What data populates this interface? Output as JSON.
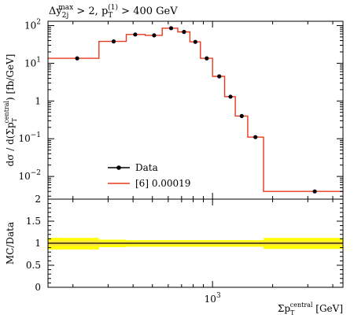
{
  "chart_data": [
    {
      "type": "line",
      "title": "Δy<sub>2j</sub><sup>max</sup> > 2, p<sub>T</sub><sup>(1)</sup> > 400 GeV",
      "title_parts": {
        "dy": "Δy",
        "dy_sub": "2j",
        "dy_sup": "max",
        "cut1": " > 2, p",
        "pt_sub": "T",
        "pt_sup": "(1)",
        "cut2": " > 400 GeV"
      },
      "xlabel": "Σp_T^central [GeV]",
      "xlabel_parts": {
        "sigma_p": "Σp",
        "sub": "T",
        "sup": "central",
        "unit": " [GeV]"
      },
      "ylabel": "dσ / d(Σp_T^central) [fb/GeV]",
      "ylabel_parts": {
        "main": "dσ / d(Σp",
        "sub": "T",
        "sup": "central",
        "tail": ") [fb/GeV]"
      },
      "xscale": "log",
      "yscale": "log",
      "xlim": [
        150,
        4500
      ],
      "ylim": [
        0.0025,
        130
      ],
      "xticks": [
        {
          "value": 1000,
          "base": "10",
          "exp": "3"
        }
      ],
      "yticks": [
        {
          "value": 100,
          "base": "10",
          "exp": "2"
        },
        {
          "value": 10,
          "base": "10",
          "exp": "1"
        },
        {
          "value": 1,
          "base": "1",
          "exp": ""
        },
        {
          "value": 0.1,
          "base": "10",
          "exp": "−1"
        },
        {
          "value": 0.01,
          "base": "10",
          "exp": "−2"
        }
      ],
      "legend_position": "lower-left",
      "series": [
        {
          "name": "Data",
          "kind": "points",
          "color": "#000000",
          "x": [
            210,
            320,
            410,
            510,
            620,
            720,
            820,
            935,
            1080,
            1230,
            1400,
            1640,
            3250
          ],
          "y": [
            13.5,
            38,
            58,
            55,
            85,
            68,
            37,
            13.5,
            4.5,
            1.3,
            0.4,
            0.11,
            0.004
          ]
        },
        {
          "name": "[6] 0.00019",
          "kind": "histogram",
          "color": "#e8391d",
          "bin_edges": [
            150,
            270,
            370,
            460,
            560,
            670,
            770,
            870,
            1000,
            1150,
            1300,
            1500,
            1800,
            4500
          ],
          "values": [
            13.5,
            38,
            58,
            55,
            85,
            68,
            37,
            13.5,
            4.5,
            1.3,
            0.4,
            0.11,
            0.004
          ]
        }
      ]
    },
    {
      "type": "area",
      "ylabel": "MC/Data",
      "ylim": [
        0,
        2
      ],
      "yticks": [
        "0",
        "0.5",
        "1",
        "1.5",
        "2"
      ],
      "ratio_line": 1.0,
      "band_colors": {
        "inner": "#fee33a",
        "outer": "#ffff00"
      },
      "bands": {
        "x": [
          150,
          270,
          370,
          1800,
          4500
        ],
        "outer_low": [
          0.86,
          0.91,
          0.92,
          0.87,
          0.87
        ],
        "outer_high": [
          1.12,
          1.08,
          1.07,
          1.12,
          1.12
        ],
        "inner_low": [
          0.94,
          0.96,
          0.96,
          0.95,
          0.95
        ],
        "inner_high": [
          1.06,
          1.04,
          1.04,
          1.05,
          1.05
        ]
      }
    }
  ]
}
